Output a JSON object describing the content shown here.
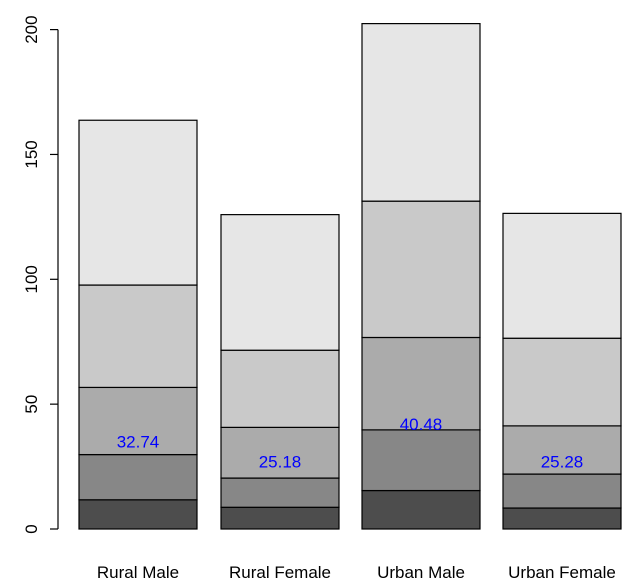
{
  "chart_data": {
    "type": "bar",
    "stacked": true,
    "categories": [
      "Rural Male",
      "Rural Female",
      "Urban Male",
      "Urban Female"
    ],
    "series": [
      {
        "values": [
          11.7,
          8.7,
          15.4,
          8.4
        ],
        "color": "#4d4d4d"
      },
      {
        "values": [
          18.1,
          11.7,
          24.3,
          13.6
        ],
        "color": "#878787"
      },
      {
        "values": [
          26.9,
          20.3,
          37.0,
          19.3
        ],
        "color": "#ababab"
      },
      {
        "values": [
          41.0,
          30.9,
          54.6,
          35.1
        ],
        "color": "#c9c9c9"
      },
      {
        "values": [
          66.0,
          54.3,
          71.1,
          50.0
        ],
        "color": "#e6e6e6"
      }
    ],
    "data_labels": {
      "values": [
        "32.74",
        "25.18",
        "40.48",
        "25.28"
      ],
      "y": [
        35,
        27,
        42,
        27
      ],
      "color": "#0000ff"
    },
    "title": "",
    "xlabel": "",
    "ylabel": "",
    "ylim": [
      0,
      210
    ],
    "yticks": [
      "0",
      "50",
      "100",
      "150",
      "200"
    ],
    "grid": false,
    "legend": "none"
  }
}
